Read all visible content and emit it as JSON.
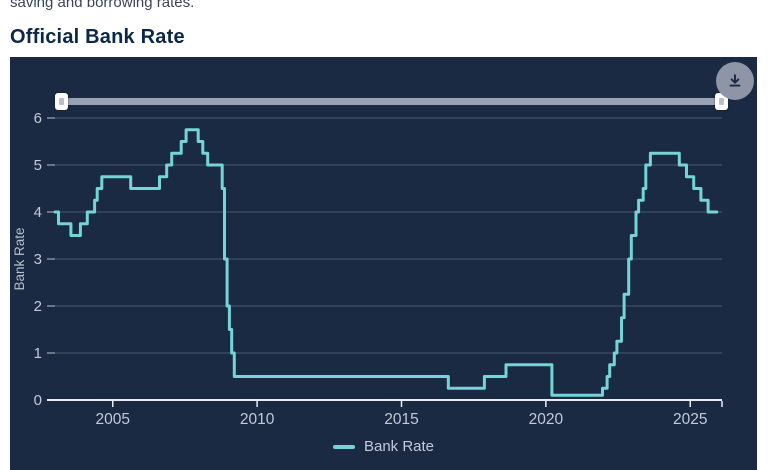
{
  "page": {
    "intro_text": "saving and borrowing rates.",
    "title": "Official Bank Rate"
  },
  "panel": {
    "background_color": "#1a2a42",
    "download_button": {
      "icon": "download-icon",
      "circle_color": "#8d95a6",
      "icon_color": "#1a2a42"
    },
    "range_slider": {
      "track_color": "#99a2b2",
      "handle_color": "#ffffff"
    }
  },
  "chart_data": {
    "type": "line",
    "step": true,
    "title": "Official Bank Rate",
    "xlabel": "",
    "ylabel": "Bank Rate",
    "xlim": [
      2003,
      2026.1
    ],
    "ylim": [
      0,
      6
    ],
    "xticks": [
      2005,
      2010,
      2015,
      2020,
      2025
    ],
    "yticks": [
      0,
      1,
      2,
      3,
      4,
      5,
      6
    ],
    "grid": true,
    "legend_position": "bottom",
    "series": [
      {
        "name": "Bank Rate",
        "color": "#74d4d8",
        "extend_to": 2025.92,
        "points": [
          [
            2003.0,
            4.0
          ],
          [
            2003.12,
            3.75
          ],
          [
            2003.55,
            3.5
          ],
          [
            2003.88,
            3.75
          ],
          [
            2004.12,
            4.0
          ],
          [
            2004.37,
            4.25
          ],
          [
            2004.46,
            4.5
          ],
          [
            2004.62,
            4.75
          ],
          [
            2005.62,
            4.5
          ],
          [
            2006.62,
            4.75
          ],
          [
            2006.87,
            5.0
          ],
          [
            2007.04,
            5.25
          ],
          [
            2007.37,
            5.5
          ],
          [
            2007.54,
            5.75
          ],
          [
            2007.96,
            5.5
          ],
          [
            2008.12,
            5.25
          ],
          [
            2008.29,
            5.0
          ],
          [
            2008.79,
            4.5
          ],
          [
            2008.87,
            3.0
          ],
          [
            2008.96,
            2.0
          ],
          [
            2009.04,
            1.5
          ],
          [
            2009.12,
            1.0
          ],
          [
            2009.21,
            0.5
          ],
          [
            2016.62,
            0.25
          ],
          [
            2017.87,
            0.5
          ],
          [
            2018.62,
            0.75
          ],
          [
            2020.21,
            0.1
          ],
          [
            2021.96,
            0.25
          ],
          [
            2022.12,
            0.5
          ],
          [
            2022.21,
            0.75
          ],
          [
            2022.37,
            1.0
          ],
          [
            2022.46,
            1.25
          ],
          [
            2022.62,
            1.75
          ],
          [
            2022.71,
            2.25
          ],
          [
            2022.87,
            3.0
          ],
          [
            2022.96,
            3.5
          ],
          [
            2023.12,
            4.0
          ],
          [
            2023.21,
            4.25
          ],
          [
            2023.37,
            4.5
          ],
          [
            2023.46,
            5.0
          ],
          [
            2023.62,
            5.25
          ],
          [
            2024.62,
            5.0
          ],
          [
            2024.87,
            4.75
          ],
          [
            2025.12,
            4.5
          ],
          [
            2025.37,
            4.25
          ],
          [
            2025.62,
            4.0
          ]
        ]
      }
    ]
  },
  "colors": {
    "axis": "#e9edf2",
    "grid": "rgba(201,210,224,0.28)",
    "tick_label": "#c3cad6",
    "axis_title": "#b6bfcc"
  }
}
